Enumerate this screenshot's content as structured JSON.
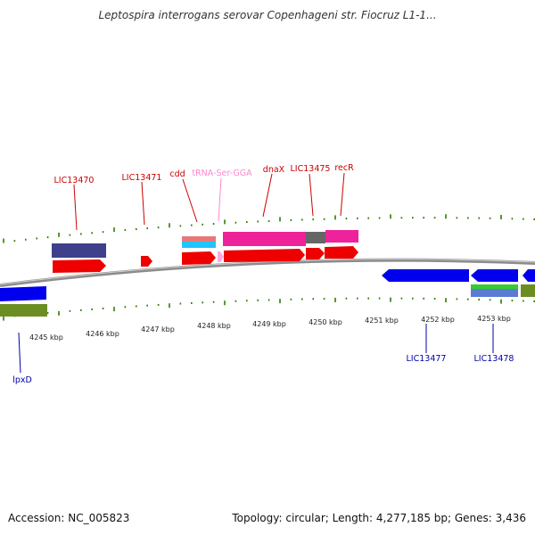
{
  "title": "Leptospira interrogans serovar Copenhageni str. Fiocruz L1-1...",
  "footer": {
    "accession": "Accession: NC_005823",
    "summary": "Topology: circular; Length: 4,277,185 bp; Genes: 3,436"
  },
  "colors": {
    "backbone": "#8c8c8c",
    "cds": "#ff0000",
    "trna": "#ffaadd",
    "gene_reverse": "#0000ee",
    "label_forward": "#cc0000",
    "label_trna": "#ff88cc",
    "label_reverse": "#0000aa",
    "tick": "#2e7d00"
  },
  "scale": {
    "unit": "kbp",
    "labels": [
      "4245 kbp",
      "4246 kbp",
      "4247 kbp",
      "4248 kbp",
      "4249 kbp",
      "4250 kbp",
      "4251 kbp",
      "4252 kbp",
      "4253 kbp"
    ]
  },
  "genes": {
    "forward": [
      "LIC13470",
      "LIC13471",
      "cdd",
      "tRNA-Ser-GGA",
      "dnaX",
      "LIC13475",
      "recR"
    ],
    "reverse": [
      "lpxD",
      "LIC13477",
      "LIC13478"
    ]
  }
}
